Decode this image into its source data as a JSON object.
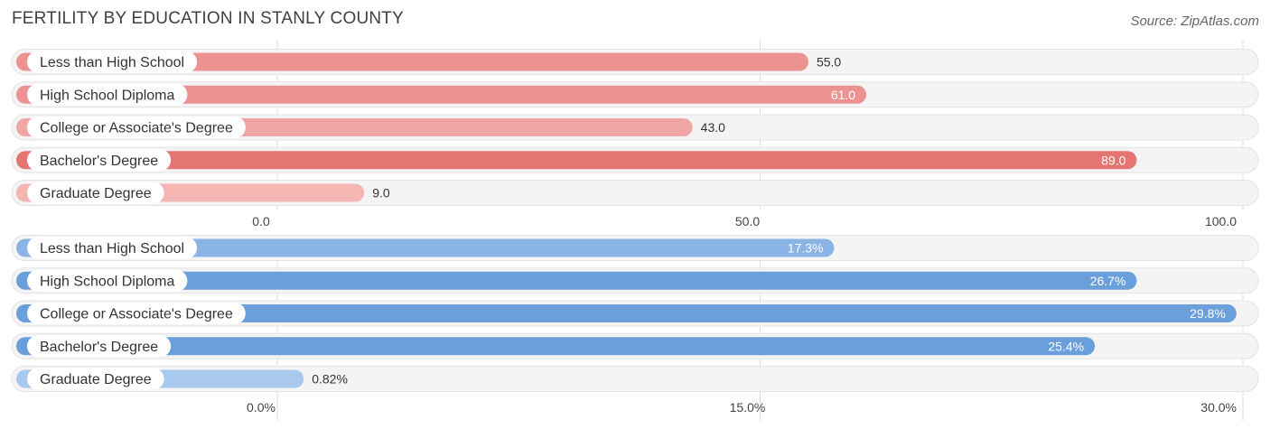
{
  "header": {
    "title": "FERTILITY BY EDUCATION IN STANLY COUNTY",
    "source": "Source: ZipAtlas.com"
  },
  "chart_data": [
    {
      "type": "bar",
      "orientation": "horizontal",
      "categories": [
        "Less than High School",
        "High School Diploma",
        "College or Associate's Degree",
        "Bachelor's Degree",
        "Graduate Degree"
      ],
      "values": [
        55.0,
        61.0,
        43.0,
        89.0,
        9.0
      ],
      "value_labels": [
        "55.0",
        "61.0",
        "43.0",
        "89.0",
        "9.0"
      ],
      "colors": [
        "#ec9290",
        "#ec9290",
        "#f0a6a4",
        "#e57571",
        "#f4b5b3"
      ],
      "xlim": [
        0,
        100
      ],
      "ticks": [
        0,
        50,
        100
      ],
      "tick_labels": [
        "0.0",
        "50.0",
        "100.0"
      ],
      "grid": true
    },
    {
      "type": "bar",
      "orientation": "horizontal",
      "categories": [
        "Less than High School",
        "High School Diploma",
        "College or Associate's Degree",
        "Bachelor's Degree",
        "Graduate Degree"
      ],
      "values": [
        17.3,
        26.7,
        29.8,
        25.4,
        0.82
      ],
      "value_labels": [
        "17.3%",
        "26.7%",
        "29.8%",
        "25.4%",
        "0.82%"
      ],
      "colors": [
        "#8ab4e6",
        "#6a9fdc",
        "#6a9fdc",
        "#6a9fdc",
        "#a9c8ee"
      ],
      "xlim": [
        0,
        30
      ],
      "ticks": [
        0,
        15,
        30
      ],
      "tick_labels": [
        "0.0%",
        "15.0%",
        "30.0%"
      ],
      "grid": true
    }
  ]
}
